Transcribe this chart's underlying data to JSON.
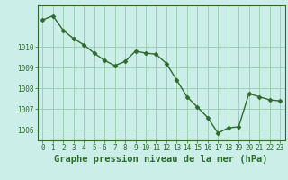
{
  "x": [
    0,
    1,
    2,
    3,
    4,
    5,
    6,
    7,
    8,
    9,
    10,
    11,
    12,
    13,
    14,
    15,
    16,
    17,
    18,
    19,
    20,
    21,
    22,
    23
  ],
  "y": [
    1011.3,
    1011.5,
    1010.8,
    1010.4,
    1010.1,
    1009.7,
    1009.35,
    1009.1,
    1009.3,
    1009.8,
    1009.7,
    1009.65,
    1009.2,
    1008.4,
    1007.6,
    1007.1,
    1006.6,
    1005.85,
    1006.1,
    1006.15,
    1007.75,
    1007.6,
    1007.45,
    1007.4
  ],
  "line_color": "#2d6a2d",
  "marker": "D",
  "marker_size": 2.5,
  "bg_color": "#cceee8",
  "grid_color": "#99ccaa",
  "xlabel": "Graphe pression niveau de la mer (hPa)",
  "xlabel_fontsize": 7.5,
  "ylim": [
    1005.5,
    1012.0
  ],
  "xlim": [
    -0.5,
    23.5
  ],
  "yticks": [
    1006,
    1007,
    1008,
    1009,
    1010
  ],
  "xticks": [
    0,
    1,
    2,
    3,
    4,
    5,
    6,
    7,
    8,
    9,
    10,
    11,
    12,
    13,
    14,
    15,
    16,
    17,
    18,
    19,
    20,
    21,
    22,
    23
  ],
  "tick_fontsize": 5.5,
  "line_width": 1.0,
  "spine_color": "#2d6a2d"
}
